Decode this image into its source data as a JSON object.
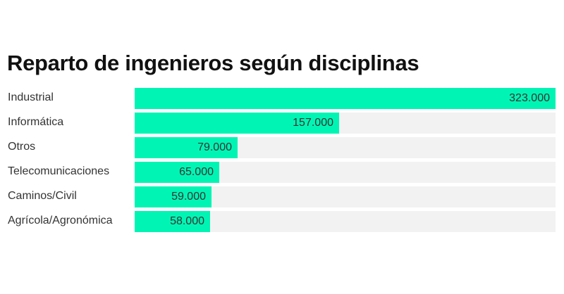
{
  "chart_data": {
    "type": "bar",
    "orientation": "horizontal",
    "title": "Reparto de ingenieros según disciplinas",
    "categories": [
      "Industrial",
      "Informática",
      "Otros",
      "Telecomunicaciones",
      "Caminos/Civil",
      "Agrícola/Agronómica"
    ],
    "values": [
      323000,
      157000,
      79000,
      65000,
      59000,
      58000
    ],
    "value_labels": [
      "323.000",
      "157.000",
      "79.000",
      "65.000",
      "59.000",
      "58.000"
    ],
    "xlim": [
      0,
      323000
    ],
    "grid": false,
    "legend": "none",
    "colors": {
      "bar": "#00f5b4",
      "track": "#f2f2f2"
    }
  }
}
